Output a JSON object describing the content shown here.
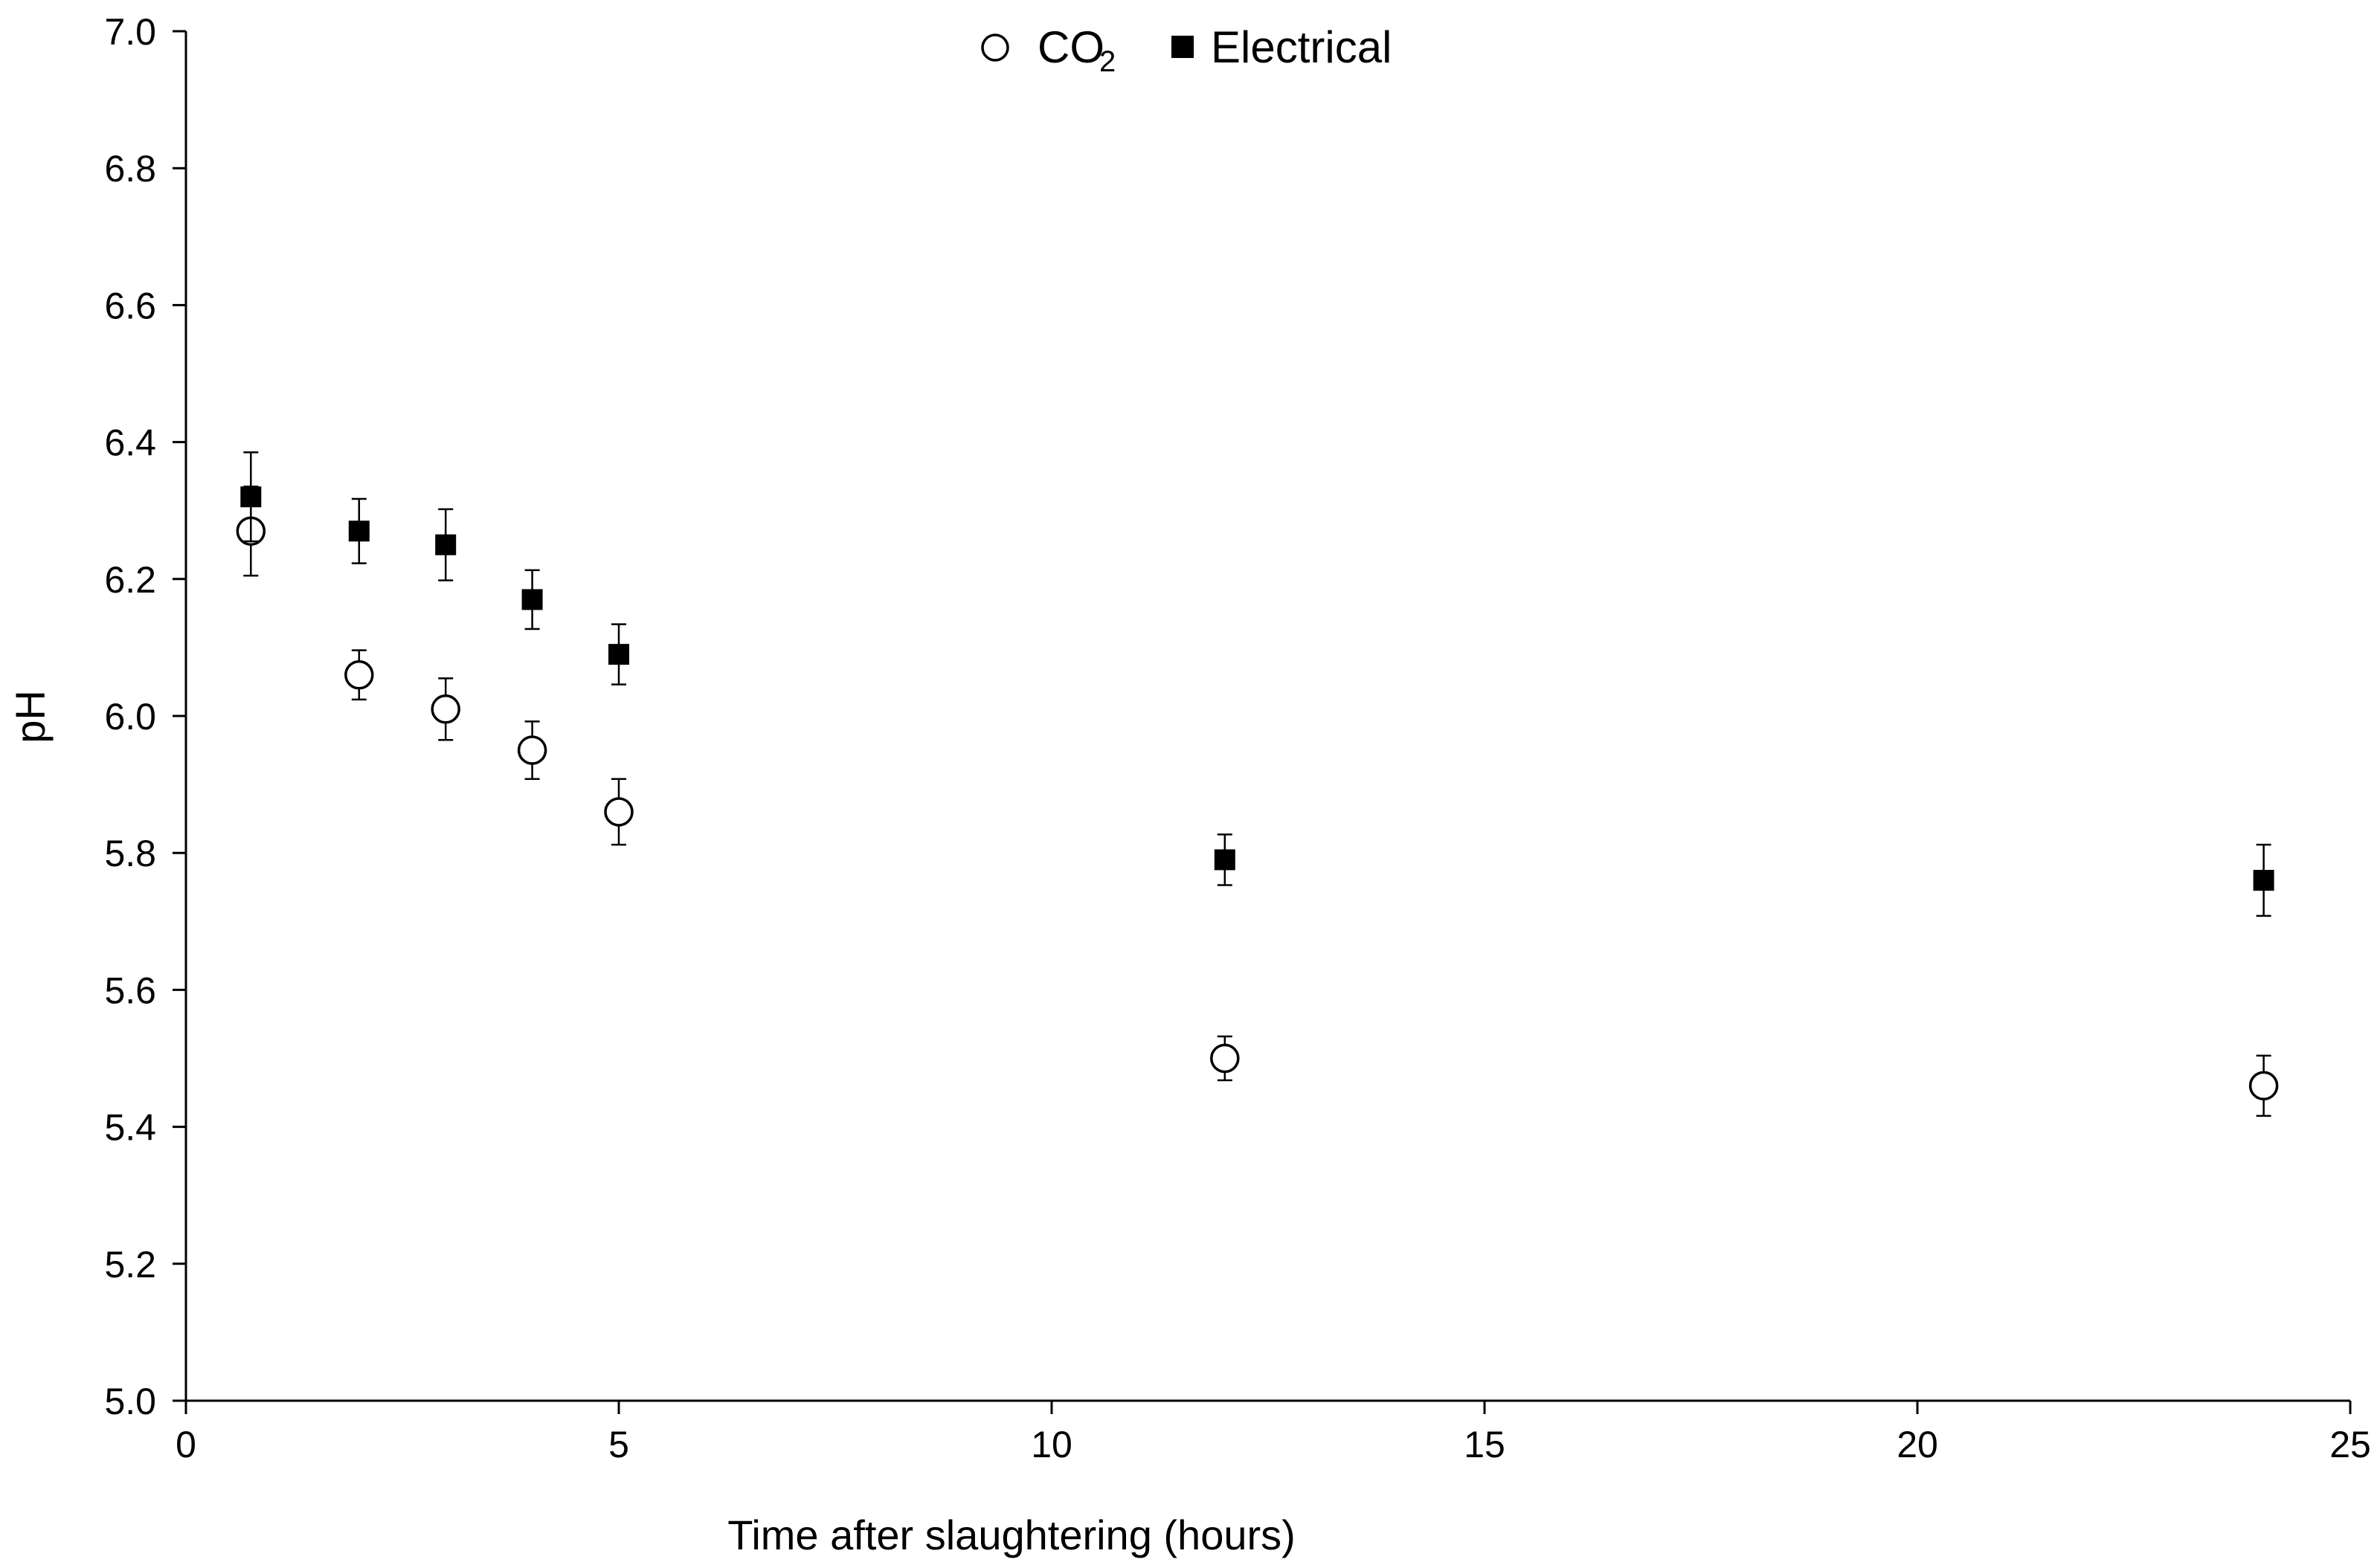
{
  "chart_data": {
    "type": "scatter",
    "title": "",
    "xlabel": "Time  after slaughtering  (hours)",
    "ylabel": "pH",
    "xlim": [
      0,
      25
    ],
    "ylim": [
      5.0,
      7.0
    ],
    "xticks": [
      0,
      5,
      10,
      15,
      20,
      25
    ],
    "yticks": [
      5.0,
      5.2,
      5.4,
      5.6,
      5.8,
      6.0,
      6.2,
      6.4,
      6.6,
      6.8,
      7.0
    ],
    "xtick_labels": [
      "0",
      "5",
      "10",
      "15",
      "20",
      "25"
    ],
    "ytick_labels": [
      "5.0",
      "5.2",
      "5.4",
      "5.6",
      "5.8",
      "6.0",
      "6.2",
      "6.4",
      "6.6",
      "6.8",
      "7.0"
    ],
    "grid": false,
    "legend_position": "top-center",
    "legend": {
      "co2_main": "CO",
      "co2_sub": "2",
      "electrical": "Electrical"
    },
    "series": [
      {
        "name": "CO2",
        "marker": "open-circle",
        "color": "#000000",
        "x": [
          0.75,
          2,
          3,
          4,
          5,
          12,
          24
        ],
        "y": [
          6.27,
          6.06,
          6.01,
          5.95,
          5.86,
          5.5,
          5.46
        ],
        "error": [
          0.065,
          0.036,
          0.045,
          0.042,
          0.048,
          0.032,
          0.044
        ]
      },
      {
        "name": "Electrical",
        "marker": "filled-square",
        "color": "#000000",
        "x": [
          0.75,
          2,
          3,
          4,
          5,
          12,
          24
        ],
        "y": [
          6.32,
          6.27,
          6.25,
          6.17,
          6.09,
          5.79,
          5.76
        ],
        "error": [
          0.065,
          0.047,
          0.052,
          0.043,
          0.044,
          0.037,
          0.052
        ]
      }
    ]
  }
}
